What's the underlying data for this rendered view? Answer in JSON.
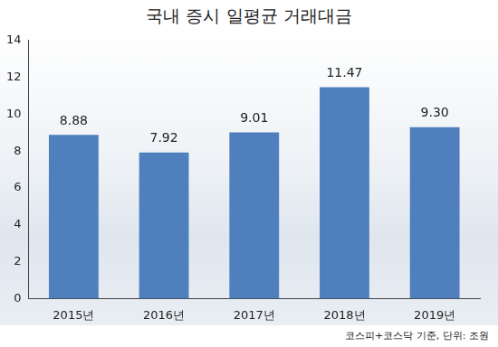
{
  "chart_data": {
    "type": "bar",
    "title": "국내 증시 일평균 거래대금",
    "annotations": [
      "코스피+코스닥 기준, 단위: 조원"
    ],
    "categories": [
      "2015년",
      "2016년",
      "2017년",
      "2018년",
      "2019년"
    ],
    "values": [
      8.88,
      7.92,
      9.01,
      11.47,
      9.3
    ],
    "value_labels": [
      "8.88",
      "7.92",
      "9.01",
      "11.47",
      "9.30"
    ],
    "color": "#4f7fbd",
    "ylim": [
      0,
      14
    ],
    "yticks": [
      0,
      2,
      4,
      6,
      8,
      10,
      12,
      14
    ],
    "grid": false,
    "data_labels": true
  }
}
